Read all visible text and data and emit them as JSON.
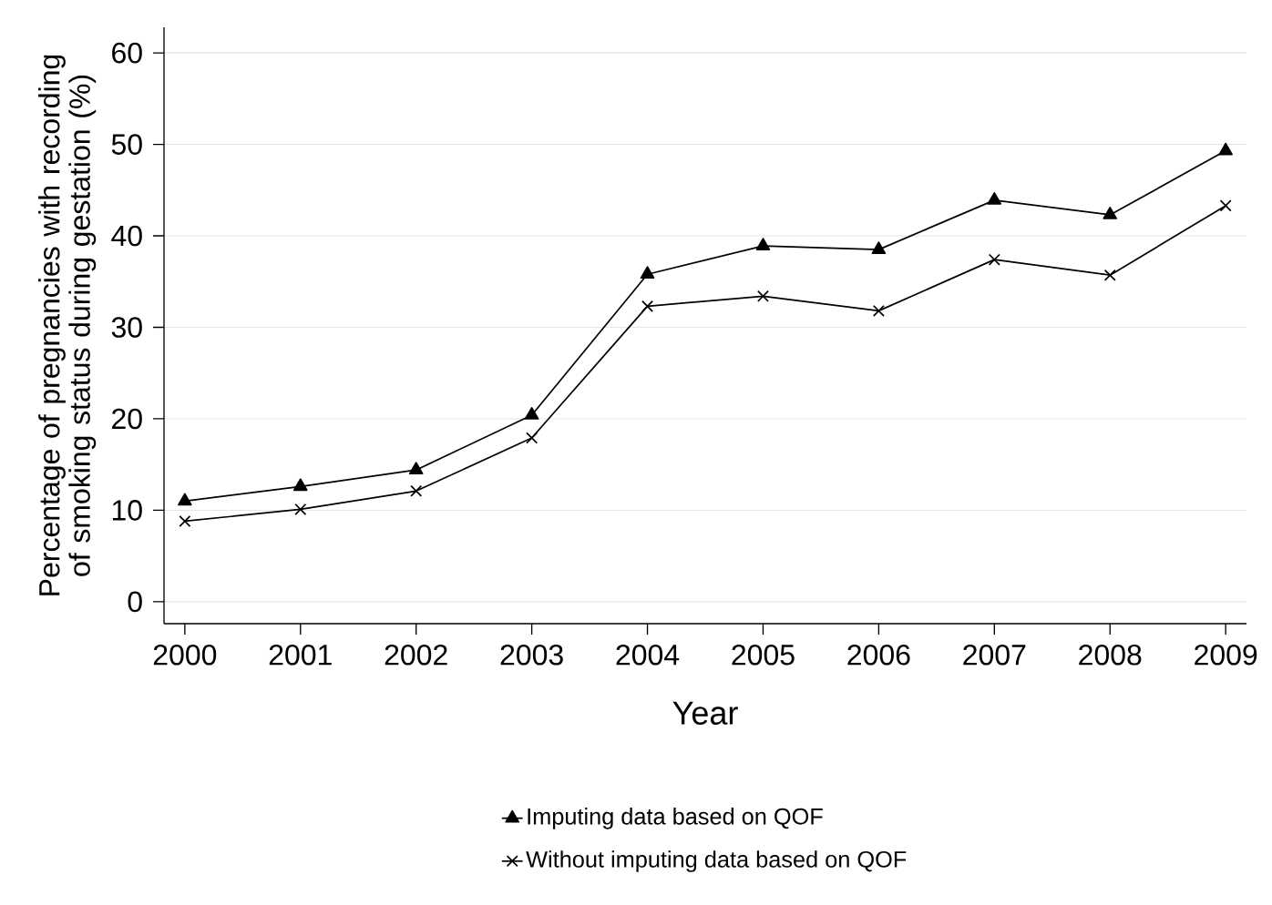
{
  "chart_data": {
    "type": "line",
    "xlabel": "Year",
    "ylabel": "Percentage of pregnancies with recording of smoking status during gestation (%)",
    "x": [
      2000,
      2001,
      2002,
      2003,
      2004,
      2005,
      2006,
      2007,
      2008,
      2009
    ],
    "series": [
      {
        "name": "Imputing data based on QOF",
        "color": "#000000",
        "marker": "triangle",
        "values": [
          11.0,
          12.6,
          14.4,
          20.4,
          35.8,
          38.9,
          38.5,
          43.9,
          42.3,
          49.3
        ]
      },
      {
        "name": "Without imputing data based on QOF",
        "color": "#000000",
        "marker": "cross",
        "values": [
          8.8,
          10.1,
          12.1,
          17.9,
          32.3,
          33.4,
          31.8,
          37.4,
          35.7,
          43.3
        ]
      }
    ],
    "xlim": [
      1999.82,
      2009.18
    ],
    "ylim": [
      -2.4,
      62.8
    ],
    "xticks": [
      2000,
      2001,
      2002,
      2003,
      2004,
      2005,
      2006,
      2007,
      2008,
      2009
    ],
    "yticks": [
      0,
      10,
      20,
      30,
      40,
      50,
      60
    ],
    "grid": "y",
    "legend": "bottom",
    "line_style": "solid"
  }
}
